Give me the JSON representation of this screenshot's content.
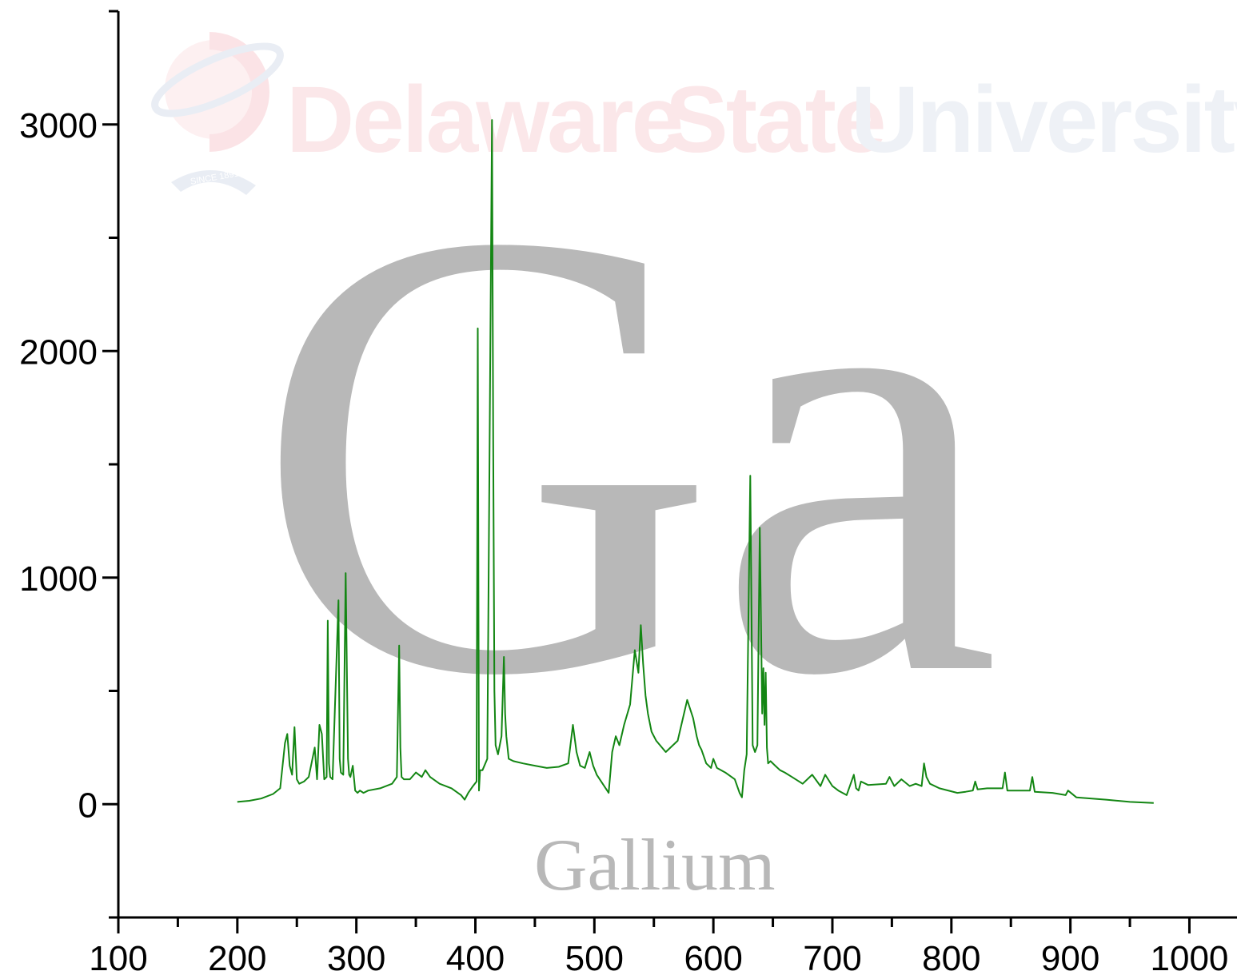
{
  "watermark": {
    "word1": "Delaware",
    "word2": "State",
    "word3": "University",
    "since": "SINCE 1891",
    "color_red": "#fbe7e9",
    "color_blue": "#eef1f6"
  },
  "element": {
    "symbol": "Ga",
    "name": "Gallium",
    "color": "#b8b8b8"
  },
  "chart_data": {
    "type": "line",
    "title": "",
    "xlabel": "",
    "ylabel": "",
    "xlim": [
      100,
      1040
    ],
    "ylim": [
      -500,
      3500
    ],
    "x_ticks": [
      100,
      200,
      300,
      400,
      500,
      600,
      700,
      800,
      900,
      1000
    ],
    "y_ticks": [
      0,
      1000,
      2000,
      3000
    ],
    "grid": false,
    "series": [
      {
        "color": "#138613",
        "x": [
          200,
          210,
          220,
          230,
          236,
          240,
          242,
          244,
          246,
          248,
          250,
          252,
          256,
          260,
          265,
          267,
          269,
          271,
          273,
          275,
          276,
          277,
          278,
          280,
          285,
          286,
          287,
          289,
          291,
          293,
          294,
          295,
          297,
          299,
          301,
          303,
          306,
          310,
          320,
          330,
          334,
          336,
          337,
          338,
          340,
          345,
          350,
          355,
          358,
          362,
          370,
          380,
          388,
          391,
          394,
          398,
          401,
          402,
          403,
          404,
          406,
          410,
          414,
          415,
          416,
          417,
          419,
          422,
          424,
          425,
          426,
          428,
          432,
          440,
          450,
          460,
          470,
          478,
          482,
          485,
          488,
          492,
          496,
          499,
          502,
          507,
          512,
          515,
          518,
          521,
          525,
          530,
          534,
          537,
          539,
          541,
          543,
          545,
          548,
          552,
          560,
          570,
          578,
          583,
          586,
          588,
          590,
          594,
          598,
          600,
          603,
          610,
          618,
          622,
          624,
          626,
          628,
          631,
          633,
          635,
          637,
          639,
          641,
          642,
          643,
          644,
          645,
          646,
          648,
          652,
          656,
          660,
          666,
          675,
          683,
          690,
          694,
          700,
          705,
          712,
          718,
          720,
          722,
          724,
          730,
          745,
          748,
          752,
          758,
          765,
          770,
          775,
          777,
          779,
          782,
          790,
          805,
          812,
          818,
          820,
          822,
          830,
          843,
          845,
          847,
          860,
          866,
          868,
          870,
          885,
          896,
          898,
          905,
          930,
          950,
          970
        ],
        "values": [
          10,
          15,
          25,
          45,
          70,
          270,
          310,
          170,
          130,
          340,
          110,
          90,
          100,
          120,
          250,
          110,
          350,
          310,
          110,
          120,
          810,
          180,
          120,
          110,
          900,
          200,
          140,
          130,
          1020,
          200,
          130,
          120,
          170,
          60,
          50,
          60,
          50,
          60,
          70,
          90,
          120,
          700,
          250,
          120,
          110,
          110,
          140,
          120,
          150,
          120,
          90,
          70,
          40,
          20,
          50,
          80,
          100,
          2100,
          60,
          150,
          150,
          200,
          3020,
          1600,
          500,
          260,
          220,
          300,
          650,
          400,
          300,
          200,
          190,
          180,
          170,
          160,
          165,
          180,
          350,
          230,
          170,
          160,
          230,
          170,
          130,
          90,
          50,
          230,
          300,
          260,
          350,
          440,
          680,
          580,
          790,
          620,
          480,
          400,
          320,
          280,
          230,
          280,
          460,
          380,
          300,
          260,
          240,
          180,
          160,
          200,
          160,
          140,
          110,
          50,
          30,
          150,
          220,
          1450,
          260,
          230,
          260,
          1220,
          400,
          600,
          350,
          580,
          250,
          180,
          190,
          170,
          150,
          140,
          120,
          90,
          130,
          80,
          130,
          80,
          60,
          40,
          130,
          70,
          60,
          100,
          85,
          90,
          120,
          80,
          110,
          80,
          90,
          80,
          180,
          120,
          90,
          70,
          50,
          55,
          60,
          100,
          65,
          70,
          70,
          140,
          60,
          60,
          60,
          120,
          55,
          50,
          40,
          60,
          30,
          20,
          10,
          5
        ]
      }
    ]
  }
}
